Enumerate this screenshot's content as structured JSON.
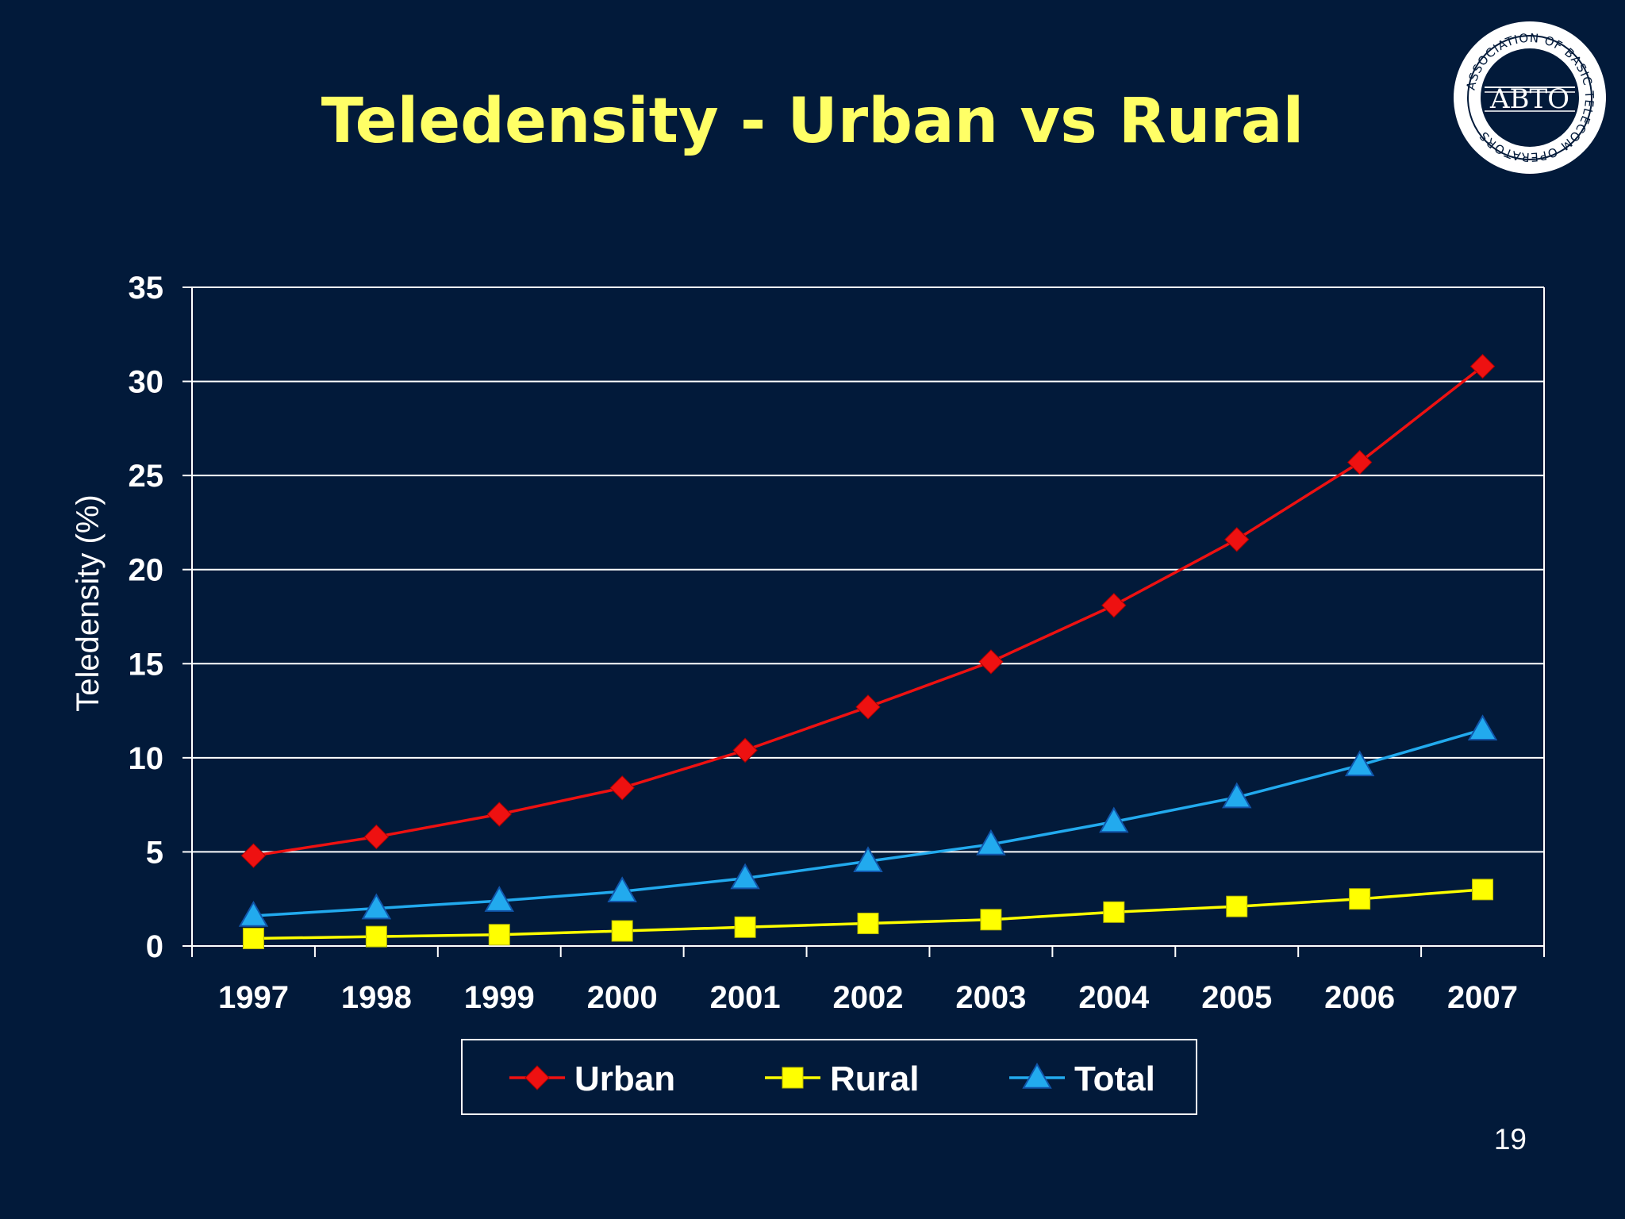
{
  "slide": {
    "title": "Teledensity - Urban vs Rural",
    "page_number": "19"
  },
  "logo": {
    "text": "ABTO",
    "ring_text": "ASSOCIATION OF BASIC TELECOM OPERATORS"
  },
  "colors": {
    "background": "#021a3a",
    "title": "#ffff66",
    "grid": "#ffffff"
  },
  "chart_data": {
    "type": "line",
    "title": "",
    "xlabel": "",
    "ylabel": "Teledensity (%)",
    "ylim": [
      0,
      35
    ],
    "yticks": [
      0,
      5,
      10,
      15,
      20,
      25,
      30,
      35
    ],
    "grid": true,
    "legend_position": "bottom",
    "categories": [
      "1997",
      "1998",
      "1999",
      "2000",
      "2001",
      "2002",
      "2003",
      "2004",
      "2005",
      "2006",
      "2007"
    ],
    "series": [
      {
        "name": "Urban",
        "color": "#ee1111",
        "marker": "diamond",
        "values": [
          4.8,
          5.8,
          7.0,
          8.4,
          10.4,
          12.7,
          15.1,
          18.1,
          21.6,
          25.7,
          30.8
        ]
      },
      {
        "name": "Rural",
        "color": "#ffff00",
        "marker": "square",
        "values": [
          0.4,
          0.5,
          0.6,
          0.8,
          1.0,
          1.2,
          1.4,
          1.8,
          2.1,
          2.5,
          3.0
        ]
      },
      {
        "name": "Total",
        "color": "#22aaee",
        "marker": "triangle",
        "values": [
          1.6,
          2.0,
          2.4,
          2.9,
          3.6,
          4.5,
          5.4,
          6.6,
          7.9,
          9.6,
          11.5
        ]
      }
    ]
  }
}
